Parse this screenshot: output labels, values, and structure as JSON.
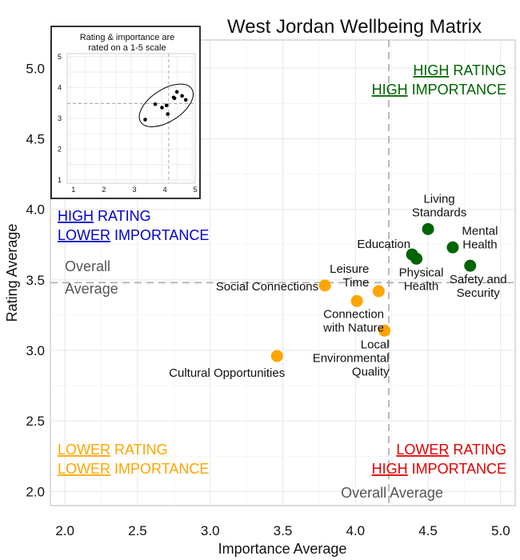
{
  "chart_data": {
    "type": "scatter",
    "title": "West Jordan Wellbeing Matrix",
    "xlabel": "Importance Average",
    "ylabel": "Rating Average",
    "xlim": [
      1.9,
      5.1
    ],
    "ylim": [
      1.9,
      5.2
    ],
    "xticks": [
      "2.0",
      "2.5",
      "3.0",
      "3.5",
      "4.0",
      "4.5",
      "5.0"
    ],
    "yticks": [
      "2.0",
      "2.5",
      "3.0",
      "3.5",
      "4.0",
      "4.5",
      "5.0"
    ],
    "grid": true,
    "overall_average": {
      "x": 4.23,
      "y": 3.48,
      "x_label": "Overall Average",
      "y_label": [
        "Overall",
        "Average"
      ]
    },
    "colors": {
      "high": "#006400",
      "lower": "#FFA500",
      "blue": "#0000CD",
      "red": "#E00000",
      "avgline": "#aaaaaa"
    },
    "points": [
      {
        "name": [
          "Living",
          "Standards"
        ],
        "x": 4.5,
        "y": 3.86,
        "group": "high"
      },
      {
        "name": [
          "Mental",
          "Health"
        ],
        "x": 4.67,
        "y": 3.73,
        "group": "high"
      },
      {
        "name": [
          "Education"
        ],
        "x": 4.39,
        "y": 3.68,
        "group": "high"
      },
      {
        "name": [
          "Physical",
          "Health"
        ],
        "x": 4.42,
        "y": 3.65,
        "group": "high"
      },
      {
        "name": [
          "Safety and",
          "Security"
        ],
        "x": 4.79,
        "y": 3.6,
        "group": "high"
      },
      {
        "name": [
          "Social Connections"
        ],
        "x": 3.79,
        "y": 3.46,
        "group": "lower"
      },
      {
        "name": [
          "Leisure",
          "Time"
        ],
        "x": 4.16,
        "y": 3.42,
        "group": "lower"
      },
      {
        "name": [
          "Connection",
          "with Nature"
        ],
        "x": 4.01,
        "y": 3.35,
        "group": "lower"
      },
      {
        "name": [
          "Local",
          "Environmental",
          "Quality"
        ],
        "x": 4.2,
        "y": 3.14,
        "group": "lower"
      },
      {
        "name": [
          "Cultural Opportunities"
        ],
        "x": 3.46,
        "y": 2.96,
        "group": "lower"
      }
    ],
    "quadrants": {
      "top_right": [
        {
          "u": "HIGH",
          "rest": " RATING"
        },
        {
          "u": "HIGH",
          "rest": " IMPORTANCE"
        }
      ],
      "top_left": [
        {
          "u": "HIGH",
          "rest": " RATING"
        },
        {
          "u": "LOWER",
          "rest": " IMPORTANCE"
        }
      ],
      "bottom_left": [
        {
          "u": "LOWER",
          "rest": " RATING"
        },
        {
          "u": "LOWER",
          "rest": " IMPORTANCE"
        }
      ],
      "bottom_right": [
        {
          "u": "LOWER",
          "rest": " RATING"
        },
        {
          "u": "HIGH",
          "rest": " IMPORTANCE"
        }
      ]
    },
    "inset": {
      "title": [
        "Rating & importance are",
        "rated on a 1-5 scale"
      ],
      "xlim": [
        0.9,
        5.1
      ],
      "ylim": [
        0.9,
        5.1
      ],
      "xticks": [
        "1",
        "2",
        "3",
        "4",
        "5"
      ],
      "yticks": [
        "1",
        "2",
        "3",
        "4",
        "5"
      ]
    }
  }
}
